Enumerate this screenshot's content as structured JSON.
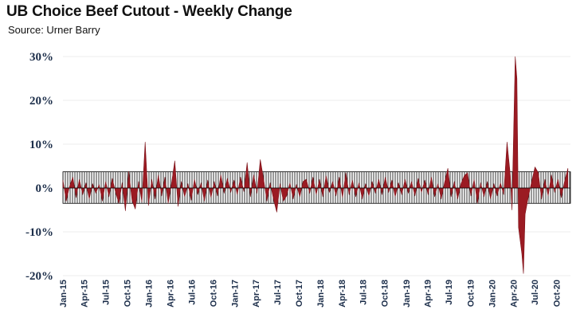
{
  "header": {
    "title": "UB Choice Beef Cutout - Weekly Change",
    "subtitle": "Source: Urner Barry"
  },
  "colors": {
    "series": "#9b1b23",
    "series_stroke": "#7a0f16",
    "band_hatch": "#000000",
    "grid": "#ededed",
    "tick_text": "#1c2e4a"
  },
  "chart_data": {
    "type": "area",
    "title": "UB Choice Beef Cutout - Weekly Change",
    "subtitle": "Source: Urner Barry",
    "xlabel": "",
    "ylabel": "",
    "ylim": [
      -0.2,
      0.3
    ],
    "yticks": [
      {
        "value": 0.3,
        "label": "30%"
      },
      {
        "value": 0.2,
        "label": "20%"
      },
      {
        "value": 0.1,
        "label": "10%"
      },
      {
        "value": 0.0,
        "label": "0%"
      },
      {
        "value": -0.1,
        "label": "-10%"
      },
      {
        "value": -0.2,
        "label": "-20%"
      }
    ],
    "xlim": [
      "2015-01-01",
      "2020-11-30"
    ],
    "xticks": [
      {
        "date": "2015-01-01",
        "label": "Jan-15"
      },
      {
        "date": "2015-04-01",
        "label": "Apr-15"
      },
      {
        "date": "2015-07-01",
        "label": "Jul-15"
      },
      {
        "date": "2015-10-01",
        "label": "Oct-15"
      },
      {
        "date": "2016-01-01",
        "label": "Jan-16"
      },
      {
        "date": "2016-04-01",
        "label": "Apr-16"
      },
      {
        "date": "2016-07-01",
        "label": "Jul-16"
      },
      {
        "date": "2016-10-01",
        "label": "Oct-16"
      },
      {
        "date": "2017-01-01",
        "label": "Jan-17"
      },
      {
        "date": "2017-04-01",
        "label": "Apr-17"
      },
      {
        "date": "2017-07-01",
        "label": "Jul-17"
      },
      {
        "date": "2017-10-01",
        "label": "Oct-17"
      },
      {
        "date": "2018-01-01",
        "label": "Jan-18"
      },
      {
        "date": "2018-04-01",
        "label": "Apr-18"
      },
      {
        "date": "2018-07-01",
        "label": "Jul-18"
      },
      {
        "date": "2018-10-01",
        "label": "Oct-18"
      },
      {
        "date": "2019-01-01",
        "label": "Jan-19"
      },
      {
        "date": "2019-04-01",
        "label": "Apr-19"
      },
      {
        "date": "2019-07-01",
        "label": "Jul-19"
      },
      {
        "date": "2019-10-01",
        "label": "Oct-19"
      },
      {
        "date": "2020-01-01",
        "label": "Jan-20"
      },
      {
        "date": "2020-04-01",
        "label": "Apr-20"
      },
      {
        "date": "2020-07-01",
        "label": "Jul-20"
      },
      {
        "date": "2020-10-01",
        "label": "Oct-20"
      }
    ],
    "grid": true,
    "legend": "none",
    "band": {
      "low": -0.035,
      "high": 0.037,
      "style": "vertical-hatch"
    },
    "series": [
      {
        "points": [
          [
            "2015-01-01",
            0.018
          ],
          [
            "2015-01-15",
            -0.03
          ],
          [
            "2015-01-29",
            0.004
          ],
          [
            "2015-02-12",
            0.025
          ],
          [
            "2015-02-26",
            -0.022
          ],
          [
            "2015-03-12",
            0.02
          ],
          [
            "2015-03-26",
            -0.015
          ],
          [
            "2015-04-09",
            0.012
          ],
          [
            "2015-04-23",
            -0.025
          ],
          [
            "2015-05-07",
            0.01
          ],
          [
            "2015-05-21",
            -0.012
          ],
          [
            "2015-06-04",
            0.008
          ],
          [
            "2015-06-18",
            -0.03
          ],
          [
            "2015-07-02",
            0.015
          ],
          [
            "2015-07-16",
            -0.02
          ],
          [
            "2015-07-30",
            0.022
          ],
          [
            "2015-08-13",
            -0.01
          ],
          [
            "2015-08-27",
            -0.035
          ],
          [
            "2015-09-10",
            0.012
          ],
          [
            "2015-09-24",
            -0.052
          ],
          [
            "2015-10-08",
            0.038
          ],
          [
            "2015-10-22",
            -0.028
          ],
          [
            "2015-11-05",
            -0.048
          ],
          [
            "2015-11-19",
            0.015
          ],
          [
            "2015-12-03",
            -0.032
          ],
          [
            "2015-12-17",
            0.105
          ],
          [
            "2015-12-31",
            -0.04
          ],
          [
            "2016-01-14",
            0.02
          ],
          [
            "2016-01-28",
            -0.025
          ],
          [
            "2016-02-11",
            0.03
          ],
          [
            "2016-02-25",
            -0.018
          ],
          [
            "2016-03-10",
            0.025
          ],
          [
            "2016-03-24",
            -0.035
          ],
          [
            "2016-04-07",
            0.01
          ],
          [
            "2016-04-21",
            0.062
          ],
          [
            "2016-05-05",
            -0.042
          ],
          [
            "2016-05-19",
            0.015
          ],
          [
            "2016-06-02",
            -0.02
          ],
          [
            "2016-06-16",
            0.01
          ],
          [
            "2016-06-30",
            -0.028
          ],
          [
            "2016-07-14",
            0.02
          ],
          [
            "2016-07-28",
            -0.015
          ],
          [
            "2016-08-11",
            0.012
          ],
          [
            "2016-08-25",
            -0.03
          ],
          [
            "2016-09-08",
            0.018
          ],
          [
            "2016-09-22",
            -0.022
          ],
          [
            "2016-10-06",
            0.015
          ],
          [
            "2016-10-20",
            -0.018
          ],
          [
            "2016-11-03",
            0.03
          ],
          [
            "2016-11-17",
            -0.012
          ],
          [
            "2016-12-01",
            0.022
          ],
          [
            "2016-12-15",
            -0.01
          ],
          [
            "2016-12-29",
            0.018
          ],
          [
            "2017-01-12",
            -0.015
          ],
          [
            "2017-01-26",
            0.025
          ],
          [
            "2017-02-09",
            -0.008
          ],
          [
            "2017-02-23",
            0.058
          ],
          [
            "2017-03-09",
            -0.02
          ],
          [
            "2017-03-23",
            0.03
          ],
          [
            "2017-04-06",
            -0.012
          ],
          [
            "2017-04-20",
            0.065
          ],
          [
            "2017-05-04",
            0.02
          ],
          [
            "2017-05-18",
            -0.03
          ],
          [
            "2017-06-01",
            0.012
          ],
          [
            "2017-06-15",
            -0.025
          ],
          [
            "2017-06-29",
            -0.055
          ],
          [
            "2017-07-13",
            0.01
          ],
          [
            "2017-07-27",
            -0.03
          ],
          [
            "2017-08-10",
            -0.018
          ],
          [
            "2017-08-24",
            0.012
          ],
          [
            "2017-09-07",
            -0.025
          ],
          [
            "2017-09-21",
            0.008
          ],
          [
            "2017-10-05",
            -0.02
          ],
          [
            "2017-10-19",
            0.015
          ],
          [
            "2017-11-02",
            0.02
          ],
          [
            "2017-11-16",
            -0.012
          ],
          [
            "2017-11-30",
            0.025
          ],
          [
            "2017-12-14",
            -0.015
          ],
          [
            "2017-12-28",
            0.02
          ],
          [
            "2018-01-11",
            -0.02
          ],
          [
            "2018-01-25",
            0.028
          ],
          [
            "2018-02-08",
            -0.01
          ],
          [
            "2018-02-22",
            0.015
          ],
          [
            "2018-03-08",
            -0.018
          ],
          [
            "2018-03-22",
            0.025
          ],
          [
            "2018-04-05",
            -0.022
          ],
          [
            "2018-04-19",
            0.035
          ],
          [
            "2018-05-03",
            -0.015
          ],
          [
            "2018-05-17",
            0.018
          ],
          [
            "2018-05-31",
            -0.02
          ],
          [
            "2018-06-14",
            0.012
          ],
          [
            "2018-06-28",
            -0.025
          ],
          [
            "2018-07-12",
            0.01
          ],
          [
            "2018-07-26",
            -0.018
          ],
          [
            "2018-08-09",
            0.015
          ],
          [
            "2018-08-23",
            -0.012
          ],
          [
            "2018-09-06",
            0.02
          ],
          [
            "2018-09-20",
            -0.015
          ],
          [
            "2018-10-04",
            0.025
          ],
          [
            "2018-10-18",
            -0.01
          ],
          [
            "2018-11-01",
            0.018
          ],
          [
            "2018-11-15",
            -0.02
          ],
          [
            "2018-11-29",
            0.012
          ],
          [
            "2018-12-13",
            -0.015
          ],
          [
            "2018-12-27",
            0.02
          ],
          [
            "2019-01-10",
            -0.012
          ],
          [
            "2019-01-24",
            0.015
          ],
          [
            "2019-02-07",
            -0.018
          ],
          [
            "2019-02-21",
            0.022
          ],
          [
            "2019-03-07",
            -0.01
          ],
          [
            "2019-03-21",
            0.018
          ],
          [
            "2019-04-04",
            -0.015
          ],
          [
            "2019-04-18",
            0.025
          ],
          [
            "2019-05-02",
            -0.02
          ],
          [
            "2019-05-16",
            0.01
          ],
          [
            "2019-05-30",
            -0.025
          ],
          [
            "2019-06-13",
            0.012
          ],
          [
            "2019-06-27",
            0.045
          ],
          [
            "2019-07-11",
            -0.02
          ],
          [
            "2019-07-25",
            0.015
          ],
          [
            "2019-08-08",
            -0.025
          ],
          [
            "2019-08-22",
            0.01
          ],
          [
            "2019-09-05",
            0.028
          ],
          [
            "2019-09-19",
            0.035
          ],
          [
            "2019-10-03",
            -0.018
          ],
          [
            "2019-10-17",
            0.02
          ],
          [
            "2019-10-31",
            -0.035
          ],
          [
            "2019-11-14",
            0.012
          ],
          [
            "2019-11-28",
            -0.02
          ],
          [
            "2019-12-12",
            0.015
          ],
          [
            "2019-12-26",
            -0.025
          ],
          [
            "2020-01-09",
            0.01
          ],
          [
            "2020-01-23",
            -0.018
          ],
          [
            "2020-02-06",
            0.012
          ],
          [
            "2020-02-20",
            -0.015
          ],
          [
            "2020-03-05",
            0.105
          ],
          [
            "2020-03-19",
            0.03
          ],
          [
            "2020-03-26",
            -0.05
          ],
          [
            "2020-04-09",
            0.3
          ],
          [
            "2020-04-16",
            0.25
          ],
          [
            "2020-04-23",
            -0.09
          ],
          [
            "2020-05-07",
            -0.15
          ],
          [
            "2020-05-14",
            -0.195
          ],
          [
            "2020-05-21",
            -0.06
          ],
          [
            "2020-06-04",
            -0.02
          ],
          [
            "2020-06-18",
            0.015
          ],
          [
            "2020-07-02",
            0.048
          ],
          [
            "2020-07-16",
            0.035
          ],
          [
            "2020-07-30",
            -0.025
          ],
          [
            "2020-08-13",
            0.02
          ],
          [
            "2020-08-27",
            -0.018
          ],
          [
            "2020-09-10",
            0.03
          ],
          [
            "2020-09-24",
            -0.01
          ],
          [
            "2020-10-08",
            0.02
          ],
          [
            "2020-10-22",
            -0.022
          ],
          [
            "2020-11-05",
            0.015
          ],
          [
            "2020-11-19",
            0.045
          ]
        ]
      }
    ]
  }
}
